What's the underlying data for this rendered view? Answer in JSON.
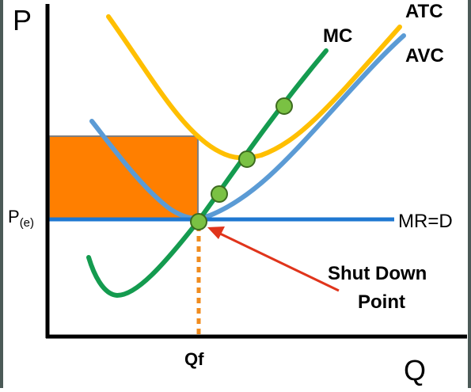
{
  "axes": {
    "y_label": "P",
    "x_label": "Q",
    "price_label": "P(e)",
    "quantity_label": "Qf"
  },
  "curves": {
    "mc_label": "MC",
    "atc_label": "ATC",
    "avc_label": "AVC",
    "mr_label": "MR=D"
  },
  "annotation": {
    "line1": "Shut Down",
    "line2": "Point"
  },
  "colors": {
    "mc": "#149b4f",
    "atc": "#ffbf00",
    "avc": "#5b9bd5",
    "mr": "#1f78d1",
    "rect": "#ff7f00",
    "point": "#7ac143",
    "arrow": "#e0341b",
    "qf_line": "#f08c1f"
  },
  "points_count_note": ""
}
